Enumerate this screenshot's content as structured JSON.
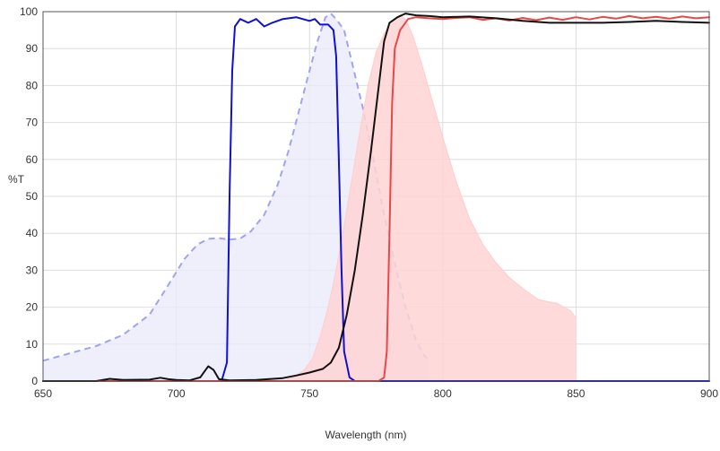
{
  "chart_data": {
    "type": "line",
    "xlabel": "Wavelength (nm)",
    "ylabel": "%T",
    "xlim": [
      650,
      900
    ],
    "ylim": [
      0,
      100
    ],
    "x_ticks": [
      650,
      700,
      750,
      800,
      850,
      900
    ],
    "y_ticks": [
      0,
      10,
      20,
      30,
      40,
      50,
      60,
      70,
      80,
      90,
      100
    ],
    "grid": true,
    "series": [
      {
        "kind": "dashed-area",
        "stroke": "#a0a4ee",
        "fill": "#e9e9fb",
        "points": [
          [
            650,
            5.5
          ],
          [
            660,
            7.5
          ],
          [
            670,
            9.5
          ],
          [
            680,
            12.5
          ],
          [
            690,
            18
          ],
          [
            697,
            26
          ],
          [
            703,
            33
          ],
          [
            708,
            37
          ],
          [
            712,
            38.5
          ],
          [
            716,
            38.7
          ],
          [
            720,
            38.3
          ],
          [
            724,
            38.6
          ],
          [
            728,
            40.5
          ],
          [
            733,
            45
          ],
          [
            738,
            53
          ],
          [
            742,
            62
          ],
          [
            746,
            73
          ],
          [
            750,
            84
          ],
          [
            753,
            92
          ],
          [
            756,
            98.5
          ],
          [
            758,
            99.5
          ],
          [
            760,
            98
          ],
          [
            763,
            95
          ],
          [
            766,
            86
          ],
          [
            770,
            74
          ],
          [
            774,
            60
          ],
          [
            778,
            45
          ],
          [
            782,
            32
          ],
          [
            786,
            20
          ],
          [
            790,
            11
          ],
          [
            793,
            7
          ],
          [
            795,
            5.5
          ]
        ]
      },
      {
        "kind": "area",
        "stroke": "#ffcfcf",
        "fill": "#ffd3d3",
        "points": [
          [
            650,
            0
          ],
          [
            740,
            0
          ],
          [
            744,
            1
          ],
          [
            748,
            3
          ],
          [
            751,
            6
          ],
          [
            754,
            12
          ],
          [
            757,
            20
          ],
          [
            760,
            30
          ],
          [
            763,
            42
          ],
          [
            766,
            55
          ],
          [
            769,
            68
          ],
          [
            772,
            80
          ],
          [
            775,
            89
          ],
          [
            778,
            94
          ],
          [
            781,
            97.5
          ],
          [
            784,
            99
          ],
          [
            786,
            98
          ],
          [
            789,
            93
          ],
          [
            792,
            86
          ],
          [
            796,
            76
          ],
          [
            800,
            66
          ],
          [
            805,
            54
          ],
          [
            810,
            44
          ],
          [
            815,
            37
          ],
          [
            820,
            32
          ],
          [
            825,
            28
          ],
          [
            830,
            25
          ],
          [
            836,
            22
          ],
          [
            843,
            21
          ],
          [
            848,
            19
          ],
          [
            850,
            17
          ]
        ]
      },
      {
        "kind": "line",
        "stroke": "#1010d0",
        "points": [
          [
            650,
            0
          ],
          [
            710,
            0
          ],
          [
            717,
            0
          ],
          [
            719,
            5
          ],
          [
            720,
            50
          ],
          [
            721,
            84
          ],
          [
            722,
            96
          ],
          [
            724,
            98
          ],
          [
            727,
            97
          ],
          [
            730,
            98
          ],
          [
            733,
            96
          ],
          [
            736,
            97
          ],
          [
            740,
            98
          ],
          [
            745,
            98.5
          ],
          [
            750,
            97.5
          ],
          [
            752,
            98
          ],
          [
            754,
            96.5
          ],
          [
            757,
            96.5
          ],
          [
            759,
            95
          ],
          [
            760,
            88
          ],
          [
            761,
            60
          ],
          [
            762,
            30
          ],
          [
            763,
            8
          ],
          [
            765,
            1
          ],
          [
            767,
            0
          ],
          [
            900,
            0
          ]
        ]
      },
      {
        "kind": "line",
        "stroke": "#e84848",
        "points": [
          [
            650,
            0
          ],
          [
            776,
            0
          ],
          [
            778,
            1
          ],
          [
            779,
            8
          ],
          [
            780,
            40
          ],
          [
            781,
            75
          ],
          [
            782,
            90
          ],
          [
            784,
            95
          ],
          [
            787,
            98
          ],
          [
            790,
            98.5
          ],
          [
            795,
            98.2
          ],
          [
            800,
            98
          ],
          [
            805,
            98.3
          ],
          [
            810,
            98.5
          ],
          [
            815,
            97.8
          ],
          [
            820,
            98.2
          ],
          [
            825,
            97.6
          ],
          [
            830,
            98.3
          ],
          [
            835,
            97.7
          ],
          [
            840,
            98.4
          ],
          [
            845,
            97.8
          ],
          [
            850,
            98.5
          ],
          [
            855,
            97.9
          ],
          [
            860,
            98.6
          ],
          [
            865,
            98.1
          ],
          [
            870,
            98.8
          ],
          [
            875,
            98.2
          ],
          [
            880,
            98.6
          ],
          [
            885,
            98.1
          ],
          [
            890,
            98.7
          ],
          [
            895,
            98.2
          ],
          [
            900,
            98.5
          ]
        ]
      },
      {
        "kind": "line",
        "stroke": "#111111",
        "points": [
          [
            650,
            0
          ],
          [
            670,
            0
          ],
          [
            675,
            0.6
          ],
          [
            680,
            0.3
          ],
          [
            690,
            0.4
          ],
          [
            694,
            0.9
          ],
          [
            697,
            0.5
          ],
          [
            700,
            0.3
          ],
          [
            705,
            0.2
          ],
          [
            709,
            1
          ],
          [
            711,
            3
          ],
          [
            712,
            4
          ],
          [
            714,
            3
          ],
          [
            716,
            0.5
          ],
          [
            720,
            0.2
          ],
          [
            730,
            0.3
          ],
          [
            740,
            0.8
          ],
          [
            745,
            1.5
          ],
          [
            750,
            2.3
          ],
          [
            755,
            3.3
          ],
          [
            758,
            5
          ],
          [
            761,
            9
          ],
          [
            764,
            18
          ],
          [
            767,
            30
          ],
          [
            770,
            45
          ],
          [
            773,
            62
          ],
          [
            776,
            80
          ],
          [
            778,
            92
          ],
          [
            780,
            97
          ],
          [
            783,
            98.5
          ],
          [
            786,
            99.5
          ],
          [
            790,
            99
          ],
          [
            795,
            98.8
          ],
          [
            800,
            98.5
          ],
          [
            810,
            98.7
          ],
          [
            820,
            98.2
          ],
          [
            830,
            97.5
          ],
          [
            840,
            97
          ],
          [
            850,
            97
          ],
          [
            860,
            97
          ],
          [
            870,
            97.2
          ],
          [
            880,
            97.5
          ],
          [
            890,
            97.2
          ],
          [
            900,
            97
          ]
        ]
      }
    ]
  }
}
